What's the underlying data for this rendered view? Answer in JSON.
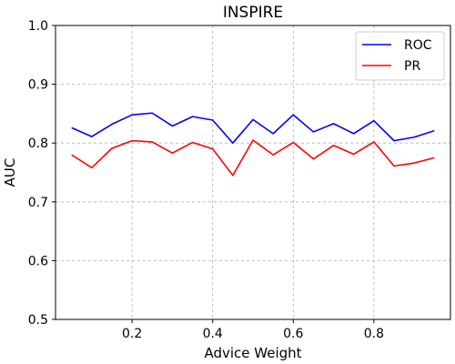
{
  "chart_data": {
    "type": "line",
    "title": "INSPIRE",
    "xlabel": "Advice Weight",
    "ylabel": "AUC",
    "xlim": [
      0.01,
      0.99
    ],
    "ylim": [
      0.5,
      1.0
    ],
    "xticks": [
      0.2,
      0.4,
      0.6,
      0.8
    ],
    "xtick_labels": [
      "0.2",
      "0.4",
      "0.6",
      "0.8"
    ],
    "yticks": [
      0.5,
      0.6,
      0.7,
      0.8,
      0.9,
      1.0
    ],
    "ytick_labels": [
      "0.5",
      "0.6",
      "0.7",
      "0.8",
      "0.9",
      "1.0"
    ],
    "grid": true,
    "legend_position": "top-right",
    "x": [
      0.05,
      0.1,
      0.15,
      0.2,
      0.25,
      0.3,
      0.35,
      0.4,
      0.45,
      0.5,
      0.55,
      0.6,
      0.65,
      0.7,
      0.75,
      0.8,
      0.85,
      0.9,
      0.95
    ],
    "series": [
      {
        "name": "ROC",
        "color": "#0000ff",
        "values": [
          0.826,
          0.811,
          0.832,
          0.848,
          0.851,
          0.829,
          0.845,
          0.839,
          0.8,
          0.84,
          0.816,
          0.848,
          0.819,
          0.833,
          0.816,
          0.838,
          0.804,
          0.81,
          0.821
        ]
      },
      {
        "name": "PR",
        "color": "#ff0000",
        "values": [
          0.78,
          0.758,
          0.791,
          0.804,
          0.802,
          0.783,
          0.801,
          0.79,
          0.745,
          0.805,
          0.78,
          0.801,
          0.773,
          0.796,
          0.781,
          0.802,
          0.761,
          0.766,
          0.775
        ]
      }
    ]
  }
}
